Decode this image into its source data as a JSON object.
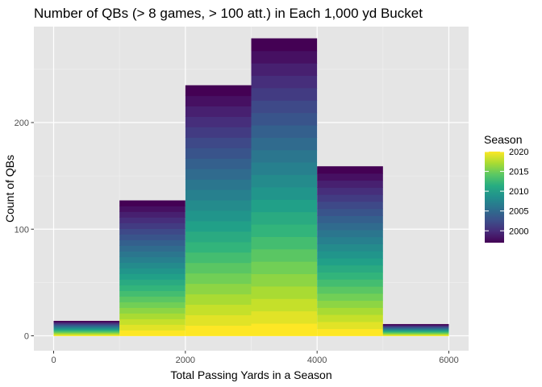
{
  "chart_data": {
    "type": "bar",
    "title": "Number of QBs (> 8 games, > 100 att.) in Each 1,000 yd Bucket",
    "xlabel": "Total Passing Yards in a Season",
    "ylabel": "Count of QBs",
    "x_ticks": [
      0,
      2000,
      4000,
      6000
    ],
    "y_ticks": [
      0,
      100,
      200
    ],
    "xlim": [
      -300,
      6300
    ],
    "ylim": [
      -14,
      290
    ],
    "grid": true,
    "bin_width": 1000,
    "bins": [
      {
        "x_start": 0,
        "x_end": 1000,
        "total": 14
      },
      {
        "x_start": 1000,
        "x_end": 2000,
        "total": 127
      },
      {
        "x_start": 2000,
        "x_end": 3000,
        "total": 235
      },
      {
        "x_start": 3000,
        "x_end": 4000,
        "total": 279
      },
      {
        "x_start": 4000,
        "x_end": 5000,
        "total": 159
      },
      {
        "x_start": 5000,
        "x_end": 6000,
        "total": 11
      }
    ],
    "fill": {
      "variable": "Season",
      "scale": "viridis",
      "range": [
        1997,
        2020
      ],
      "stacking": "newest season at bottom, oldest at top"
    },
    "legend": {
      "title": "Season",
      "labels": [
        2020,
        2015,
        2010,
        2005,
        2000
      ],
      "placement": "right"
    }
  }
}
